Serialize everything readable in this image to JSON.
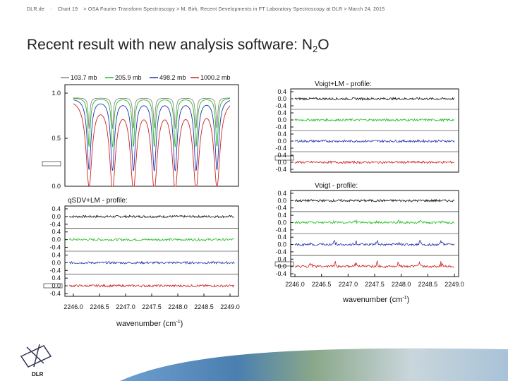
{
  "header": {
    "org": "DLR.de",
    "chart": "Chart 19",
    "text": "> OSA Fourier Transform Spectroscopy > M. Birk, Recent Developments in FT Laboratory Spectroscopy at DLR > March 24, 2015"
  },
  "slide": {
    "title_main": "Recent result with new analysis software: N",
    "title_sub": "2",
    "title_end": "O"
  },
  "logo": {
    "text": "DLR"
  },
  "panels": {
    "transmission": {
      "legend": [
        "103.7 mb",
        "205.9 mb",
        "498.2 mb",
        "1000.2 mb"
      ],
      "yticks": [
        "1.0",
        "0.5",
        "0.0"
      ]
    },
    "qsdv": {
      "title": "qSDV+LM - profile:",
      "yticks": [
        "0.4",
        "0.0",
        "-0.4",
        "0.4",
        "0.0",
        "-0.4",
        "0.4",
        "0.0",
        "-0.4",
        "0.4",
        "0.0",
        "-0.4"
      ],
      "xticks": [
        "2246.0",
        "2246.5",
        "2247.0",
        "2247.5",
        "2248.0",
        "2248.5",
        "2249.0"
      ],
      "xlabel": "wavenumber (cm",
      "xlabel_sup": "-1",
      "xlabel_end": ")"
    },
    "voigtlm": {
      "title": "Voigt+LM - profile:",
      "yticks": [
        "0.4",
        "0.0",
        "-0.4",
        "0.4",
        "0.0",
        "-0.4",
        "0.4",
        "0.0",
        "-0.4",
        "0.4",
        "0.0",
        "-0.4"
      ]
    },
    "voigt": {
      "title": "Voigt - profile:",
      "yticks": [
        "0.4",
        "0.0",
        "-0.4",
        "0.4",
        "0.0",
        "-0.4",
        "0.4",
        "0.0",
        "-0.4",
        "0.4",
        "0.0",
        "-0.4"
      ],
      "xticks": [
        "2246.0",
        "2246.5",
        "2247.0",
        "2247.5",
        "2248.0",
        "2248.5",
        "2249.0"
      ],
      "xlabel": "wavenumber (cm",
      "xlabel_sup": "-1",
      "xlabel_end": ")"
    }
  },
  "colors": {
    "black": "#111111",
    "green": "#22bb22",
    "blue": "#2233aa",
    "red": "#cc2222",
    "grey": "#888888"
  },
  "chart_data": [
    {
      "type": "line",
      "series": [
        {
          "name": "103.7 mb"
        },
        {
          "name": "205.9 mb"
        },
        {
          "name": "498.2 mb"
        },
        {
          "name": "1000.2 mb"
        }
      ],
      "ylim": [
        0,
        1
      ],
      "lines_count": 7,
      "line_centers": [
        2246.3,
        2246.75,
        2247.15,
        2247.55,
        2247.95,
        2248.35,
        2248.75
      ]
    },
    {
      "type": "line",
      "title": "qSDV+LM - profile:",
      "xlim": [
        2246.0,
        2249.0
      ]
    },
    {
      "type": "line",
      "title": "Voigt+LM - profile:"
    },
    {
      "type": "line",
      "title": "Voigt - profile:",
      "xlim": [
        2246.0,
        2249.0
      ]
    }
  ]
}
